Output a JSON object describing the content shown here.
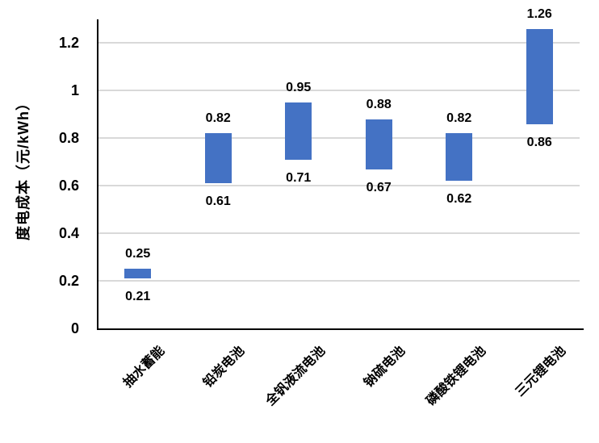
{
  "chart_data": {
    "type": "bar",
    "subtype": "floating-range-column",
    "title": "",
    "xlabel": "",
    "ylabel": "度电成本（元/kWh）",
    "categories": [
      "抽水蓄能",
      "铅炭电池",
      "全钒液流电池",
      "钠硫电池",
      "磷酸铁锂电池",
      "三元锂电池"
    ],
    "series": [
      {
        "name": "度电成本区间",
        "low": [
          0.21,
          0.61,
          0.71,
          0.67,
          0.62,
          0.86
        ],
        "high": [
          0.25,
          0.82,
          0.95,
          0.88,
          0.82,
          1.26
        ]
      }
    ],
    "low_labels": [
      "0.21",
      "0.61",
      "0.71",
      "0.67",
      "0.62",
      "0.86"
    ],
    "high_labels": [
      "0.25",
      "0.82",
      "0.95",
      "0.88",
      "0.82",
      "1.26"
    ],
    "ylim": [
      0,
      1.3
    ],
    "yticks": [
      0,
      0.2,
      0.4,
      0.6,
      0.8,
      1,
      1.2
    ],
    "ytick_labels": [
      "0",
      "0.2",
      "0.4",
      "0.6",
      "0.8",
      "1",
      "1.2"
    ],
    "grid": true,
    "legend": "none",
    "colors": {
      "bar": "#4472C4",
      "gridline": "#D9D9D9",
      "axis": "#000000",
      "text": "#000000",
      "background": "#FFFFFF"
    }
  }
}
